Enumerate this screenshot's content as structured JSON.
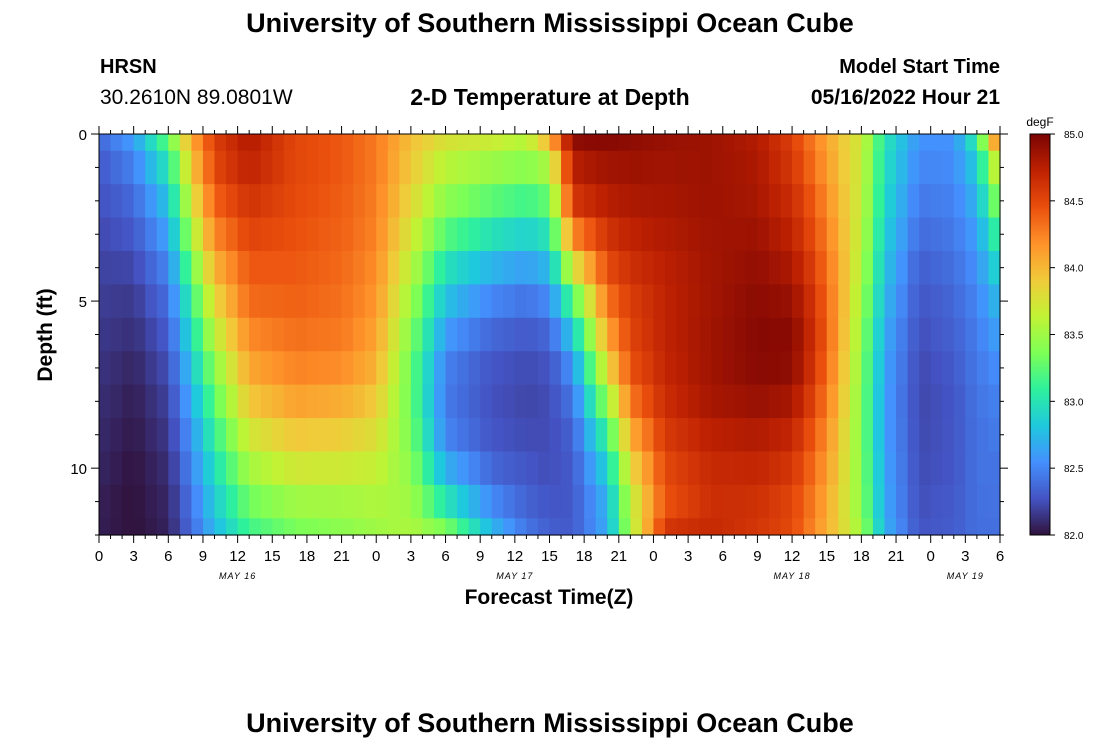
{
  "header": {
    "title": "University of Southern Mississippi Ocean Cube",
    "station": "HRSN",
    "coordinates": "30.2610N  89.0801W",
    "subtitle": "2-D Temperature at Depth",
    "model_start_label": "Model Start Time",
    "model_start_value": "05/16/2022 Hour 21"
  },
  "footer": {
    "title": "University of Southern Mississippi Ocean Cube"
  },
  "chart_data": {
    "type": "heatmap",
    "xlabel": "Forecast Time(Z)",
    "ylabel": "Depth (ft)",
    "x_tick_labels": [
      "0",
      "3",
      "6",
      "9",
      "12",
      "15",
      "18",
      "21",
      "0",
      "3",
      "6",
      "9",
      "12",
      "15",
      "18",
      "21",
      "0",
      "3",
      "6",
      "9",
      "12",
      "15",
      "18",
      "21",
      "0",
      "3",
      "6"
    ],
    "date_labels": [
      {
        "label": "MAY 16",
        "hour_index": 12
      },
      {
        "label": "MAY 17",
        "hour_index": 36
      },
      {
        "label": "MAY 18",
        "hour_index": 60
      },
      {
        "label": "MAY 19",
        "hour_index": 75
      }
    ],
    "y_tick_labels": [
      {
        "depth": 0,
        "label": "0"
      },
      {
        "depth": 5,
        "label": "5"
      },
      {
        "depth": 10,
        "label": "10"
      }
    ],
    "xlim_hours": [
      0,
      78
    ],
    "ylim_depth_ft": [
      0,
      12
    ],
    "depth_levels_ft": [
      0,
      1,
      2,
      3,
      4,
      5,
      6,
      7,
      8,
      9,
      10,
      11,
      12
    ],
    "colorbar": {
      "unit": "degF",
      "min": 82.0,
      "max": 85.0,
      "ticks": [
        "85.0",
        "84.5",
        "84.0",
        "83.5",
        "83.0",
        "82.5",
        "82.0"
      ],
      "colormap": [
        "#30123b",
        "#4454c4",
        "#4490fe",
        "#1fc9dd",
        "#2ef19c",
        "#7eff55",
        "#c1f334",
        "#f1ca3a",
        "#fe922a",
        "#ea4f0d",
        "#be2102",
        "#7a0403"
      ]
    },
    "profiles": [
      {
        "hour": 0,
        "temps_degF": [
          82.36,
          82.3,
          82.26,
          82.23,
          82.2,
          82.18,
          82.16,
          82.14,
          82.12,
          82.1,
          82.08,
          82.06,
          82.05
        ]
      },
      {
        "hour": 3,
        "temps_degF": [
          82.6,
          82.47,
          82.37,
          82.29,
          82.22,
          82.16,
          82.12,
          82.08,
          82.05,
          82.03,
          82.01,
          82.0,
          82.0
        ]
      },
      {
        "hour": 6,
        "temps_degF": [
          83.25,
          83.0,
          82.8,
          82.64,
          82.5,
          82.39,
          82.31,
          82.25,
          82.2,
          82.16,
          82.12,
          82.09,
          82.07
        ]
      },
      {
        "hour": 8,
        "temps_degF": [
          84.05,
          83.9,
          83.72,
          83.52,
          83.3,
          83.1,
          82.95,
          82.8,
          82.68,
          82.58,
          82.5,
          82.43,
          82.38
        ]
      },
      {
        "hour": 10,
        "temps_degF": [
          84.55,
          84.5,
          84.38,
          84.22,
          84.02,
          83.82,
          83.62,
          83.42,
          83.25,
          83.1,
          82.96,
          82.84,
          82.74
        ]
      },
      {
        "hour": 13,
        "temps_degF": [
          84.78,
          84.72,
          84.62,
          84.52,
          84.42,
          84.34,
          84.22,
          84.08,
          83.92,
          83.72,
          83.52,
          83.32,
          83.16
        ]
      },
      {
        "hour": 17,
        "temps_degF": [
          84.5,
          84.5,
          84.48,
          84.45,
          84.42,
          84.38,
          84.32,
          84.24,
          84.1,
          83.92,
          83.72,
          83.5,
          83.35
        ]
      },
      {
        "hour": 21,
        "temps_degF": [
          84.42,
          84.42,
          84.4,
          84.38,
          84.35,
          84.32,
          84.28,
          84.2,
          84.05,
          83.88,
          83.7,
          83.52,
          83.42
        ]
      },
      {
        "hour": 24,
        "temps_degF": [
          84.28,
          84.28,
          84.26,
          84.24,
          84.2,
          84.16,
          84.1,
          84.02,
          83.9,
          83.78,
          83.66,
          83.56,
          83.5
        ]
      },
      {
        "hour": 27,
        "temps_degF": [
          83.95,
          83.9,
          83.82,
          83.72,
          83.6,
          83.48,
          83.38,
          83.3,
          83.3,
          83.35,
          83.42,
          83.5,
          83.55
        ]
      },
      {
        "hour": 30,
        "temps_degF": [
          83.75,
          83.6,
          83.42,
          83.22,
          82.98,
          82.78,
          82.6,
          82.48,
          82.45,
          82.5,
          82.7,
          83.0,
          83.35
        ]
      },
      {
        "hour": 34,
        "temps_degF": [
          83.68,
          83.48,
          83.25,
          82.98,
          82.72,
          82.5,
          82.36,
          82.28,
          82.26,
          82.28,
          82.36,
          82.52,
          82.72
        ]
      },
      {
        "hour": 37,
        "temps_degF": [
          83.58,
          83.4,
          83.15,
          82.88,
          82.62,
          82.42,
          82.3,
          82.24,
          82.22,
          82.24,
          82.28,
          82.34,
          82.42
        ]
      },
      {
        "hour": 39,
        "temps_degF": [
          84.0,
          83.55,
          83.28,
          83.0,
          82.74,
          82.52,
          82.36,
          82.27,
          82.24,
          82.24,
          82.25,
          82.28,
          82.32
        ]
      },
      {
        "hour": 41,
        "temps_degF": [
          84.92,
          84.75,
          84.6,
          84.22,
          83.72,
          83.2,
          82.82,
          82.56,
          82.42,
          82.34,
          82.3,
          82.29,
          82.3
        ]
      },
      {
        "hour": 44,
        "temps_degF": [
          84.95,
          84.85,
          84.75,
          84.62,
          84.48,
          84.3,
          84.08,
          83.8,
          83.46,
          83.12,
          82.88,
          82.72,
          82.68
        ]
      },
      {
        "hour": 46,
        "temps_degF": [
          84.92,
          84.86,
          84.8,
          84.72,
          84.64,
          84.56,
          84.52,
          84.45,
          84.28,
          84.04,
          83.8,
          83.62,
          83.55
        ]
      },
      {
        "hour": 49,
        "temps_degF": [
          84.88,
          84.85,
          84.82,
          84.78,
          84.74,
          84.72,
          84.72,
          84.7,
          84.66,
          84.58,
          84.5,
          84.45,
          84.6
        ]
      },
      {
        "hour": 53,
        "temps_degF": [
          84.86,
          84.86,
          84.86,
          84.85,
          84.84,
          84.84,
          84.85,
          84.85,
          84.82,
          84.74,
          84.68,
          84.65,
          84.68
        ]
      },
      {
        "hour": 57,
        "temps_degF": [
          84.78,
          84.8,
          84.82,
          84.86,
          84.9,
          84.93,
          84.95,
          84.94,
          84.88,
          84.78,
          84.7,
          84.64,
          84.6
        ]
      },
      {
        "hour": 60,
        "temps_degF": [
          84.55,
          84.6,
          84.66,
          84.72,
          84.8,
          84.88,
          84.94,
          84.92,
          84.82,
          84.7,
          84.6,
          84.52,
          84.5
        ]
      },
      {
        "hour": 62,
        "temps_degF": [
          84.25,
          84.3,
          84.38,
          84.45,
          84.52,
          84.58,
          84.62,
          84.58,
          84.5,
          84.4,
          84.32,
          84.25,
          84.2
        ]
      },
      {
        "hour": 64,
        "temps_degF": [
          83.95,
          83.98,
          84.02,
          84.06,
          84.1,
          84.12,
          84.12,
          84.08,
          84.02,
          83.96,
          83.92,
          83.88,
          83.88
        ]
      },
      {
        "hour": 66,
        "temps_degF": [
          83.7,
          83.68,
          83.66,
          83.62,
          83.56,
          83.5,
          83.44,
          83.4,
          83.38,
          83.38,
          83.4,
          83.42,
          83.48
        ]
      },
      {
        "hour": 68,
        "temps_degF": [
          83.0,
          82.96,
          82.92,
          82.86,
          82.8,
          82.74,
          82.68,
          82.64,
          82.62,
          82.62,
          82.64,
          82.66,
          82.7
        ]
      },
      {
        "hour": 71,
        "temps_degF": [
          82.55,
          82.5,
          82.44,
          82.38,
          82.32,
          82.28,
          82.25,
          82.23,
          82.22,
          82.23,
          82.24,
          82.25,
          82.27
        ]
      },
      {
        "hour": 74,
        "temps_degF": [
          82.55,
          82.52,
          82.48,
          82.44,
          82.4,
          82.36,
          82.33,
          82.3,
          82.28,
          82.28,
          82.28,
          82.3,
          82.31
        ]
      },
      {
        "hour": 76,
        "temps_degF": [
          83.05,
          82.85,
          82.72,
          82.62,
          82.55,
          82.5,
          82.46,
          82.44,
          82.42,
          82.41,
          82.41,
          82.4,
          82.4
        ]
      },
      {
        "hour": 77.5,
        "temps_degF": [
          84.05,
          83.6,
          83.3,
          83.05,
          82.85,
          82.7,
          82.6,
          82.52,
          82.47,
          82.44,
          82.42,
          82.41,
          82.4
        ]
      },
      {
        "hour": 78,
        "temps_degF": [
          84.5,
          83.95,
          83.5,
          83.15,
          82.9,
          82.72,
          82.6,
          82.52,
          82.46,
          82.43,
          82.41,
          82.4,
          82.4
        ]
      }
    ]
  }
}
